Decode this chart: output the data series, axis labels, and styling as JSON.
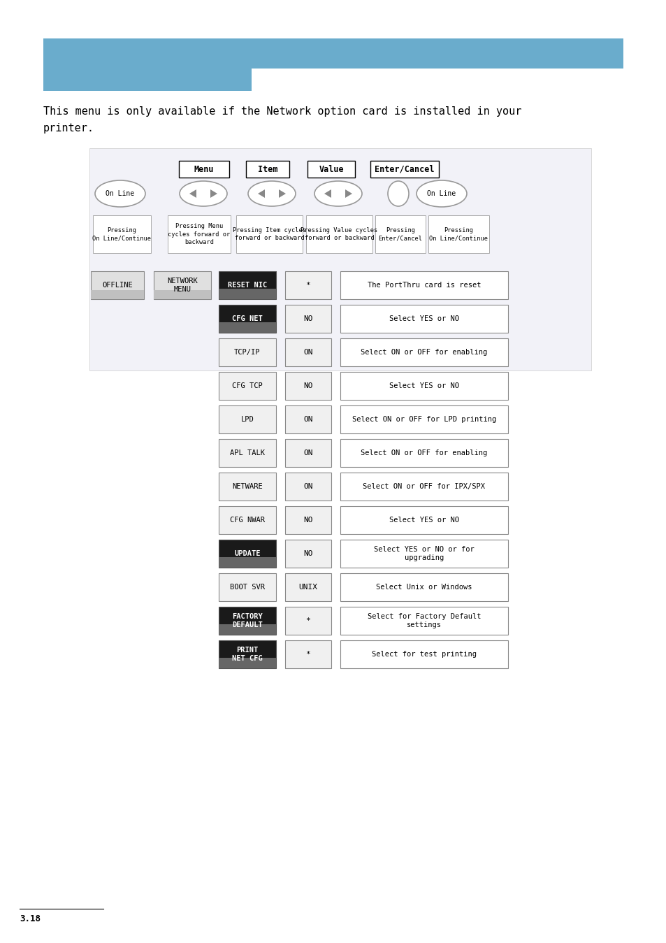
{
  "bg_color": "#ffffff",
  "header_color": "#6aaccc",
  "intro_text_line1": "This menu is only available if the Network option card is installed in your",
  "intro_text_line2": "printer.",
  "rows": [
    {
      "item": "RESET NIC",
      "item_style": "dark",
      "value": "*",
      "desc": "The PortThru card is reset",
      "show_offline": true,
      "show_network": true
    },
    {
      "item": "CFG NET",
      "item_style": "dark",
      "value": "NO",
      "desc": "Select YES or NO",
      "show_offline": false,
      "show_network": false
    },
    {
      "item": "TCP/IP",
      "item_style": "light",
      "value": "ON",
      "desc": "Select ON or OFF for enabling",
      "show_offline": false,
      "show_network": false
    },
    {
      "item": "CFG TCP",
      "item_style": "light",
      "value": "NO",
      "desc": "Select YES or NO",
      "show_offline": false,
      "show_network": false
    },
    {
      "item": "LPD",
      "item_style": "light",
      "value": "ON",
      "desc": "Select ON or OFF for LPD printing",
      "show_offline": false,
      "show_network": false
    },
    {
      "item": "APL TALK",
      "item_style": "light",
      "value": "ON",
      "desc": "Select ON or OFF for enabling",
      "show_offline": false,
      "show_network": false
    },
    {
      "item": "NETWARE",
      "item_style": "light",
      "value": "ON",
      "desc": "Select ON or OFF for IPX/SPX",
      "show_offline": false,
      "show_network": false
    },
    {
      "item": "CFG NWAR",
      "item_style": "light",
      "value": "NO",
      "desc": "Select YES or NO",
      "show_offline": false,
      "show_network": false
    },
    {
      "item": "UPDATE",
      "item_style": "dark",
      "value": "NO",
      "desc": "Select YES or NO or for\nupgrading",
      "show_offline": false,
      "show_network": false
    },
    {
      "item": "BOOT SVR",
      "item_style": "light",
      "value": "UNIX",
      "desc": "Select Unix or Windows",
      "show_offline": false,
      "show_network": false
    },
    {
      "item": "FACTORY\nDEFAULT",
      "item_style": "dark",
      "value": "*",
      "desc": "Select for Factory Default\nsettings",
      "show_offline": false,
      "show_network": false
    },
    {
      "item": "PRINT\nNET CFG",
      "item_style": "dark",
      "value": "*",
      "desc": "Select for test printing",
      "show_offline": false,
      "show_network": false
    }
  ],
  "footer_text": "3.18"
}
